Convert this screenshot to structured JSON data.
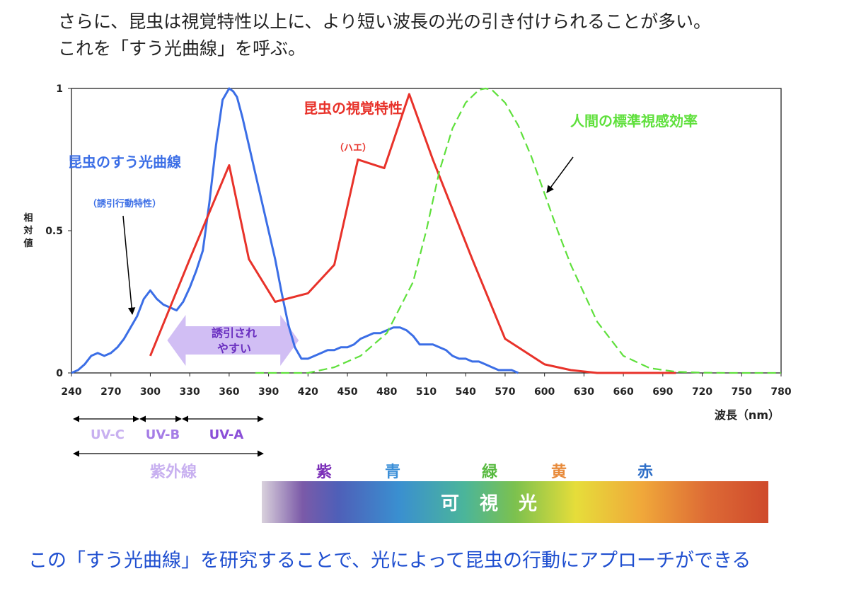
{
  "header": {
    "line1": "さらに、昆虫は視覚特性以上に、より短い波長の光の引き付けられることが多い。",
    "line2": "これを「すう光曲線」を呼ぶ。"
  },
  "footer": "この「すう光曲線」を研究することで、光によって昆虫の行動にアプローチができる",
  "colors": {
    "insect_attraction": "#3b6ee6",
    "insect_vision": "#e8322a",
    "human": "#5fe03c",
    "uv_label": "#b79be8",
    "uv_a_label": "#8a4fd8",
    "arrow_band": "#c9b3f2"
  },
  "chart_data": {
    "type": "line",
    "ylabel": "相対値",
    "xlabel": "波長（nm）",
    "xlim": [
      240,
      780
    ],
    "ylim": [
      0,
      1
    ],
    "x_ticks": [
      "240",
      "270",
      "300",
      "330",
      "360",
      "390",
      "420",
      "450",
      "480",
      "510",
      "540",
      "570",
      "600",
      "630",
      "660",
      "690",
      "720",
      "750",
      "780"
    ],
    "y_ticks": [
      {
        "value": 0,
        "label": "0"
      },
      {
        "value": 0.5,
        "label": "0.5"
      },
      {
        "value": 1,
        "label": "1"
      }
    ],
    "grid": false,
    "series": [
      {
        "name": "昆虫のすう光曲線",
        "sub": "（誘引行動特性）",
        "style": "solid",
        "x": [
          240,
          245,
          250,
          255,
          260,
          265,
          270,
          275,
          280,
          285,
          290,
          295,
          300,
          305,
          310,
          315,
          320,
          325,
          330,
          335,
          340,
          345,
          350,
          355,
          360,
          363,
          366,
          370,
          375,
          380,
          385,
          390,
          395,
          400,
          405,
          410,
          415,
          420,
          425,
          430,
          435,
          440,
          445,
          450,
          455,
          460,
          465,
          470,
          475,
          480,
          485,
          490,
          495,
          500,
          505,
          510,
          515,
          520,
          525,
          530,
          535,
          540,
          545,
          550,
          555,
          560,
          565,
          570,
          575,
          580
        ],
        "y": [
          0.0,
          0.01,
          0.03,
          0.06,
          0.07,
          0.06,
          0.07,
          0.09,
          0.12,
          0.16,
          0.2,
          0.26,
          0.29,
          0.26,
          0.24,
          0.23,
          0.22,
          0.25,
          0.3,
          0.36,
          0.43,
          0.6,
          0.8,
          0.96,
          1.0,
          0.99,
          0.97,
          0.9,
          0.8,
          0.7,
          0.6,
          0.5,
          0.4,
          0.28,
          0.17,
          0.09,
          0.05,
          0.05,
          0.06,
          0.07,
          0.08,
          0.08,
          0.09,
          0.09,
          0.1,
          0.12,
          0.13,
          0.14,
          0.14,
          0.15,
          0.16,
          0.16,
          0.15,
          0.13,
          0.1,
          0.1,
          0.1,
          0.09,
          0.08,
          0.06,
          0.05,
          0.05,
          0.04,
          0.04,
          0.03,
          0.02,
          0.01,
          0.01,
          0.01,
          0.0
        ]
      },
      {
        "name": "昆虫の視覚特性",
        "sub": "（ハエ）",
        "style": "solid",
        "x": [
          300,
          330,
          360,
          375,
          395,
          420,
          440,
          458,
          478,
          497,
          515,
          545,
          570,
          600,
          620,
          640,
          700
        ],
        "y": [
          0.06,
          0.4,
          0.73,
          0.4,
          0.25,
          0.28,
          0.38,
          0.75,
          0.72,
          0.98,
          0.75,
          0.4,
          0.12,
          0.03,
          0.01,
          0.0,
          0.0
        ]
      },
      {
        "name": "人間の標準視感効率",
        "sub": "",
        "style": "dashed",
        "x": [
          380,
          420,
          440,
          460,
          480,
          500,
          510,
          520,
          530,
          540,
          550,
          555,
          560,
          570,
          580,
          590,
          600,
          610,
          620,
          640,
          660,
          680,
          700,
          720,
          740,
          780
        ],
        "y": [
          0.0,
          0.0,
          0.02,
          0.06,
          0.14,
          0.32,
          0.5,
          0.71,
          0.86,
          0.95,
          0.995,
          1.0,
          0.995,
          0.95,
          0.87,
          0.76,
          0.63,
          0.5,
          0.38,
          0.18,
          0.06,
          0.017,
          0.004,
          0.001,
          0.0,
          0.0
        ]
      }
    ],
    "annotations": {
      "attract_zone": [
        "誘引され",
        "やすい"
      ],
      "uv_ranges": [
        "UV-C",
        "UV-B",
        "UV-A"
      ],
      "uv_total": "紫外線",
      "visible_colors": [
        "紫",
        "青",
        "緑",
        "黄",
        "赤"
      ],
      "visible_label": [
        "可",
        "視",
        "光"
      ]
    }
  }
}
